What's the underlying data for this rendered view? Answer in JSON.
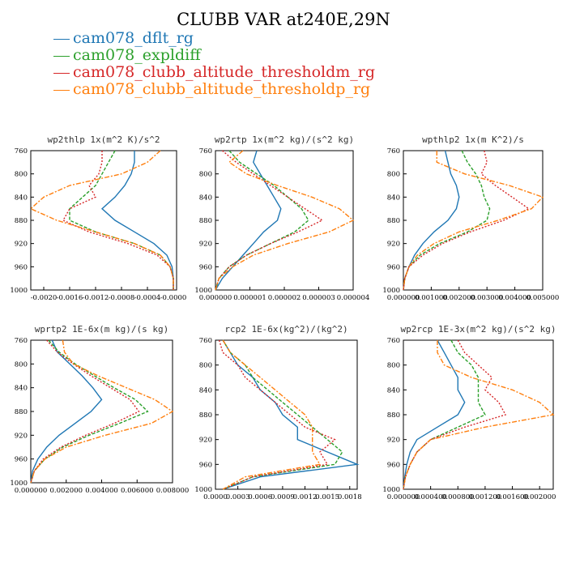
{
  "title": "CLUBB VAR at240E,29N",
  "legend": [
    {
      "name": "cam078_dflt_rg",
      "color": "#1f77b4"
    },
    {
      "name": "cam078_expldiff",
      "color": "#2ca02c"
    },
    {
      "name": "cam078_clubb_altitude_thresholdm_rg",
      "color": "#d62728"
    },
    {
      "name": "cam078_clubb_altitude_thresholdp_rg",
      "color": "#ff7f0e"
    }
  ],
  "chart_data": [
    {
      "type": "line",
      "title": "wp2thlp  1x(m^2 K)/s^2",
      "xlim": [
        -0.0022,
        5e-05
      ],
      "ylim": [
        760,
        1000
      ],
      "xticks": [
        "-0.0020",
        "-0.0016",
        "-0.0012",
        "-0.0008",
        "-0.0004",
        "-0.0000"
      ],
      "xtick_values": [
        -0.002,
        -0.0016,
        -0.0012,
        -0.0008,
        -0.0004,
        0.0
      ],
      "yticks": [
        "760",
        "800",
        "840",
        "880",
        "920",
        "960",
        "1000"
      ],
      "y": [
        760,
        780,
        800,
        820,
        840,
        860,
        880,
        900,
        920,
        940,
        960,
        980,
        1000
      ],
      "series": [
        {
          "values": [
            -0.0006,
            -0.0006,
            -0.00065,
            -0.00075,
            -0.0009,
            -0.0011,
            -0.0009,
            -0.0006,
            -0.0003,
            -0.0001,
            -2e-05,
            0.0,
            0.0
          ]
        },
        {
          "values": [
            -0.0009,
            -0.001,
            -0.0011,
            -0.0012,
            -0.0014,
            -0.0016,
            -0.0016,
            -0.0012,
            -0.0006,
            -0.0002,
            -5e-05,
            0.0,
            0.0
          ]
        },
        {
          "values": [
            -0.0011,
            -0.0011,
            -0.00115,
            -0.0013,
            -0.0012,
            -0.0016,
            -0.0017,
            -0.0013,
            -0.0007,
            -0.00025,
            -5e-05,
            0.0,
            0.0
          ]
        },
        {
          "values": [
            -0.0002,
            -0.0004,
            -0.0008,
            -0.0016,
            -0.002,
            -0.0022,
            -0.0018,
            -0.0012,
            -0.0006,
            -0.0002,
            -5e-05,
            0.0,
            0.0
          ]
        }
      ]
    },
    {
      "type": "line",
      "title": "wp2rtp  1x(m^2 kg)/(s^2 kg)",
      "xlim": [
        0,
        4e-06
      ],
      "ylim": [
        760,
        1000
      ],
      "xticks": [
        "0.000000",
        "0.000001",
        "0.000002",
        "0.000003",
        "0.000004"
      ],
      "xtick_values": [
        0,
        1e-06,
        2e-06,
        3e-06,
        4e-06
      ],
      "yticks": [
        "760",
        "800",
        "840",
        "880",
        "920",
        "960",
        "1000"
      ],
      "y": [
        760,
        780,
        800,
        820,
        840,
        860,
        880,
        900,
        920,
        940,
        960,
        980,
        1000
      ],
      "series": [
        {
          "values": [
            1.2e-06,
            1.1e-06,
            1.3e-06,
            1.5e-06,
            1.7e-06,
            1.9e-06,
            1.8e-06,
            1.4e-06,
            1.1e-06,
            8e-07,
            5e-07,
            2e-07,
            0.0
          ]
        },
        {
          "values": [
            4e-07,
            7e-07,
            1.2e-06,
            1.7e-06,
            2.1e-06,
            2.5e-06,
            2.7e-06,
            2.3e-06,
            1.6e-06,
            9e-07,
            4e-07,
            1e-07,
            0.0
          ]
        },
        {
          "values": [
            2e-07,
            6e-07,
            1.1e-06,
            1.6e-06,
            2.1e-06,
            2.6e-06,
            3.1e-06,
            2.4e-06,
            1.6e-06,
            9e-07,
            4e-07,
            1e-07,
            0.0
          ]
        },
        {
          "values": [
            8e-07,
            4e-07,
            9e-07,
            1.8e-06,
            2.8e-06,
            3.6e-06,
            4e-06,
            3.3e-06,
            2.1e-06,
            1.1e-06,
            5e-07,
            1e-07,
            0.0
          ]
        }
      ]
    },
    {
      "type": "line",
      "title": "wpthlp2  1x(m K^2)/s",
      "xlim": [
        0,
        0.005
      ],
      "ylim": [
        760,
        1000
      ],
      "xticks": [
        "0.000000",
        "0.001000",
        "0.002000",
        "0.003000",
        "0.004000",
        "0.005000"
      ],
      "xtick_values": [
        0,
        0.001,
        0.002,
        0.003,
        0.004,
        0.005
      ],
      "yticks": [
        "760",
        "800",
        "840",
        "880",
        "920",
        "960",
        "1000"
      ],
      "y": [
        760,
        780,
        800,
        820,
        840,
        860,
        880,
        900,
        920,
        940,
        960,
        980,
        1000
      ],
      "series": [
        {
          "values": [
            0.0015,
            0.0016,
            0.0017,
            0.0019,
            0.002,
            0.0019,
            0.0016,
            0.0011,
            0.0007,
            0.0004,
            0.0002,
            5e-05,
            0.0
          ]
        },
        {
          "values": [
            0.0021,
            0.0023,
            0.0026,
            0.0028,
            0.0029,
            0.0031,
            0.003,
            0.0023,
            0.0013,
            0.0006,
            0.0002,
            5e-05,
            0.0
          ]
        },
        {
          "values": [
            0.0029,
            0.003,
            0.0028,
            0.0033,
            0.0039,
            0.0045,
            0.0036,
            0.0024,
            0.0014,
            0.0007,
            0.0002,
            5e-05,
            0.0
          ]
        },
        {
          "values": [
            0.0012,
            0.0012,
            0.0022,
            0.0038,
            0.005,
            0.0046,
            0.0034,
            0.002,
            0.0011,
            0.0005,
            0.0002,
            5e-05,
            0.0
          ]
        }
      ]
    },
    {
      "type": "line",
      "title": "wprtp2  1E-6x(m kg)/(s kg)",
      "xlim": [
        0,
        0.008
      ],
      "ylim": [
        760,
        1000
      ],
      "xticks": [
        "0.000000",
        "0.002000",
        "0.004000",
        "0.006000",
        "0.008000"
      ],
      "xtick_values": [
        0,
        0.002,
        0.004,
        0.006,
        0.008
      ],
      "yticks": [
        "760",
        "800",
        "840",
        "880",
        "920",
        "960",
        "1000"
      ],
      "y": [
        760,
        780,
        800,
        820,
        840,
        860,
        880,
        900,
        920,
        940,
        960,
        980,
        1000
      ],
      "series": [
        {
          "values": [
            0.0012,
            0.0015,
            0.0022,
            0.0029,
            0.0035,
            0.004,
            0.0034,
            0.0025,
            0.0016,
            0.0009,
            0.0004,
            0.0001,
            0.0
          ]
        },
        {
          "values": [
            0.001,
            0.0016,
            0.0025,
            0.0036,
            0.0047,
            0.0059,
            0.0066,
            0.005,
            0.0033,
            0.0018,
            0.0008,
            0.0002,
            0.0
          ]
        },
        {
          "values": [
            0.0009,
            0.0015,
            0.0024,
            0.0034,
            0.0045,
            0.0056,
            0.0061,
            0.0047,
            0.0031,
            0.0017,
            0.0007,
            0.0002,
            0.0
          ]
        },
        {
          "values": [
            0.0018,
            0.0019,
            0.0024,
            0.0038,
            0.0054,
            0.007,
            0.008,
            0.0068,
            0.0042,
            0.002,
            0.0008,
            0.0002,
            0.0
          ]
        }
      ]
    },
    {
      "type": "line",
      "title": "rcp2  1E-6x(kg^2)/(kg^2)",
      "xlim": [
        0,
        0.0019
      ],
      "ylim": [
        760,
        1000
      ],
      "xticks": [
        "0.0000",
        "0.0003",
        "0.0006",
        "0.0009",
        "0.0012",
        "0.0015",
        "0.0018"
      ],
      "xtick_values": [
        0,
        0.0003,
        0.0006,
        0.0009,
        0.0012,
        0.0015,
        0.0018
      ],
      "yticks": [
        "760",
        "800",
        "840",
        "880",
        "920",
        "960",
        "1000"
      ],
      "y": [
        760,
        780,
        800,
        820,
        840,
        860,
        880,
        900,
        920,
        940,
        960,
        980,
        1000
      ],
      "series": [
        {
          "values": [
            0.0001,
            0.0002,
            0.0003,
            0.0005,
            0.0006,
            0.0008,
            0.0009,
            0.0011,
            0.0011,
            0.0015,
            0.0019,
            0.0006,
            0.0001
          ]
        },
        {
          "values": [
            0.0001,
            0.0002,
            0.0004,
            0.0005,
            0.0007,
            0.0009,
            0.0011,
            0.0013,
            0.0015,
            0.0017,
            0.0016,
            0.0005,
            0.0001
          ]
        },
        {
          "values": [
            5e-05,
            0.0001,
            0.0003,
            0.0004,
            0.0006,
            0.0008,
            0.001,
            0.0012,
            0.0016,
            0.0014,
            0.0015,
            0.0005,
            0.0001
          ]
        },
        {
          "values": [
            0.0001,
            0.0002,
            0.0004,
            0.0006,
            0.0008,
            0.001,
            0.0012,
            0.0013,
            0.0013,
            0.0013,
            0.0014,
            0.0004,
            0.0001
          ]
        }
      ]
    },
    {
      "type": "line",
      "title": "wp2rcp  1E-3x(m^2 kg)/(s^2 kg)",
      "xlim": [
        0,
        0.0022
      ],
      "ylim": [
        760,
        1000
      ],
      "xticks": [
        "0.000000",
        "0.000400",
        "0.000800",
        "0.001200",
        "0.001600",
        "0.002000"
      ],
      "xtick_values": [
        0,
        0.0004,
        0.0008,
        0.0012,
        0.0016,
        0.002
      ],
      "yticks": [
        "760",
        "800",
        "840",
        "880",
        "920",
        "960",
        "1000"
      ],
      "y": [
        760,
        780,
        800,
        820,
        840,
        860,
        880,
        900,
        920,
        940,
        960,
        980,
        1000
      ],
      "series": [
        {
          "values": [
            0.0005,
            0.0006,
            0.0007,
            0.0008,
            0.0008,
            0.0009,
            0.0008,
            0.0005,
            0.0002,
            0.0001,
            5e-05,
            2e-05,
            0.0
          ]
        },
        {
          "values": [
            0.0007,
            0.0008,
            0.001,
            0.0011,
            0.0011,
            0.0011,
            0.0012,
            0.0008,
            0.0004,
            0.0002,
            0.0001,
            3e-05,
            0.0
          ]
        },
        {
          "values": [
            0.0008,
            0.0009,
            0.0011,
            0.0013,
            0.0012,
            0.0014,
            0.0015,
            0.0009,
            0.0004,
            0.0002,
            0.0001,
            3e-05,
            0.0
          ]
        },
        {
          "values": [
            0.0005,
            0.0005,
            0.0006,
            0.001,
            0.0016,
            0.002,
            0.0022,
            0.0012,
            0.0004,
            0.0002,
            0.0001,
            3e-05,
            0.0
          ]
        }
      ]
    }
  ]
}
